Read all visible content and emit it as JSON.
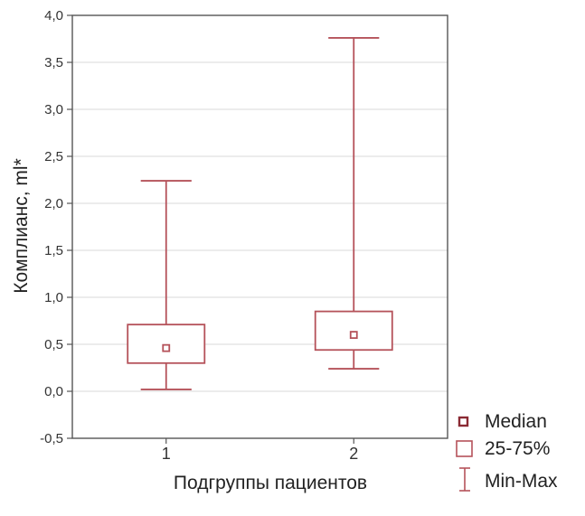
{
  "chart_data": {
    "type": "boxplot",
    "title": "",
    "xlabel": "Подгруппы пациентов",
    "ylabel": "Комплианс, ml*",
    "ylim": [
      -0.5,
      4.0
    ],
    "yticks": [
      "-0,5",
      "0,0",
      "0,5",
      "1,0",
      "1,5",
      "2,0",
      "2,5",
      "3,0",
      "3,5",
      "4,0"
    ],
    "yticks_values": [
      -0.5,
      0.0,
      0.5,
      1.0,
      1.5,
      2.0,
      2.5,
      3.0,
      3.5,
      4.0
    ],
    "categories": [
      "1",
      "2"
    ],
    "boxes": [
      {
        "category": "1",
        "min": 0.02,
        "q1": 0.3,
        "median": 0.46,
        "q3": 0.71,
        "max": 2.24
      },
      {
        "category": "2",
        "min": 0.24,
        "q1": 0.44,
        "median": 0.6,
        "q3": 0.85,
        "max": 3.76
      }
    ],
    "grid": true,
    "legend_position": "bottom-right",
    "legend": [
      "Median",
      "25-75%",
      "Min-Max"
    ],
    "colors": {
      "box": "#b5525a",
      "grid": "#d9d9d9",
      "axis": "#555555"
    }
  }
}
